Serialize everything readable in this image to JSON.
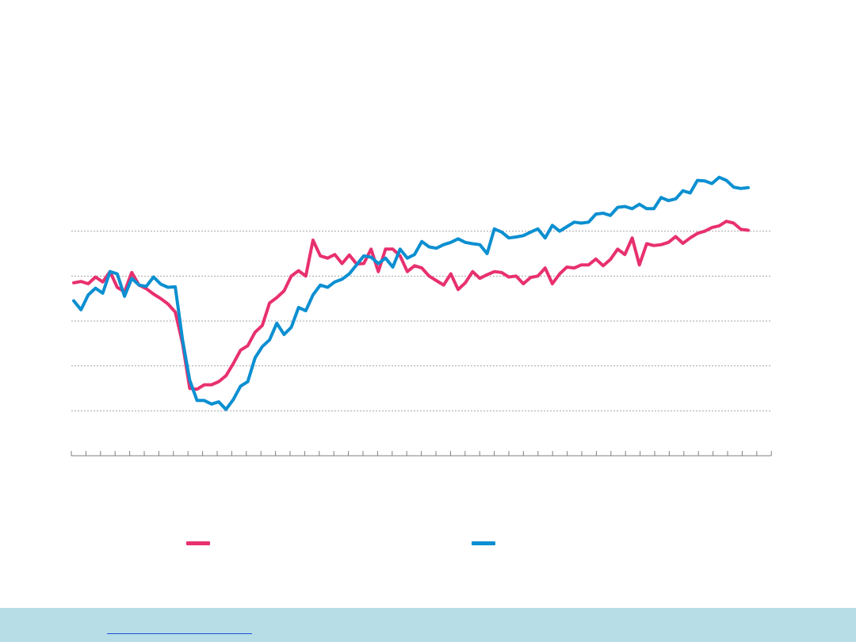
{
  "chart_data": {
    "type": "line",
    "title": "",
    "xlabel": "",
    "ylabel": "",
    "ylim": [
      0,
      600
    ],
    "y_gridlines": [
      100,
      200,
      300,
      400,
      500
    ],
    "grid": "horizontal-dashed",
    "legend_placement": "bottom",
    "series": [
      {
        "color": "#e8306f",
        "values": [
          385,
          388,
          383,
          398,
          387,
          410,
          375,
          365,
          408,
          380,
          372,
          360,
          350,
          338,
          320,
          250,
          150,
          148,
          158,
          158,
          165,
          178,
          205,
          235,
          245,
          275,
          290,
          340,
          352,
          367,
          400,
          412,
          400,
          480,
          445,
          440,
          448,
          428,
          447,
          427,
          428,
          460,
          410,
          460,
          460,
          445,
          410,
          423,
          418,
          400,
          390,
          380,
          405,
          370,
          385,
          410,
          395,
          403,
          410,
          408,
          398,
          400,
          383,
          397,
          400,
          418,
          383,
          405,
          420,
          418,
          425,
          425,
          438,
          423,
          437,
          460,
          448,
          485,
          425,
          472,
          468,
          470,
          475,
          488,
          473,
          485,
          495,
          500,
          508,
          512,
          522,
          518,
          504,
          502
        ]
      },
      {
        "color": "#0b8fd1",
        "values": [
          345,
          325,
          358,
          373,
          362,
          410,
          405,
          355,
          395,
          380,
          377,
          398,
          382,
          375,
          376,
          258,
          168,
          123,
          123,
          115,
          120,
          103,
          125,
          155,
          165,
          218,
          243,
          258,
          295,
          270,
          286,
          330,
          323,
          358,
          380,
          375,
          387,
          393,
          405,
          425,
          445,
          442,
          428,
          440,
          420,
          460,
          440,
          448,
          477,
          465,
          462,
          470,
          475,
          483,
          475,
          472,
          470,
          450,
          505,
          498,
          485,
          487,
          490,
          498,
          505,
          485,
          513,
          500,
          510,
          520,
          518,
          520,
          538,
          540,
          535,
          553,
          555,
          550,
          560,
          550,
          550,
          575,
          568,
          572,
          590,
          585,
          613,
          612,
          606,
          620,
          613,
          598,
          595,
          597
        ]
      }
    ]
  },
  "colors": {
    "grid": "#a6a6a6",
    "axis": "#7f7f7f",
    "footer_background": "#b7dde7",
    "link": "#1c4fd8"
  },
  "legend": [
    {
      "color": "#e8306f",
      "label": ""
    },
    {
      "color": "#0b8fd1",
      "label": ""
    }
  ],
  "footer": {
    "link_text": ""
  }
}
